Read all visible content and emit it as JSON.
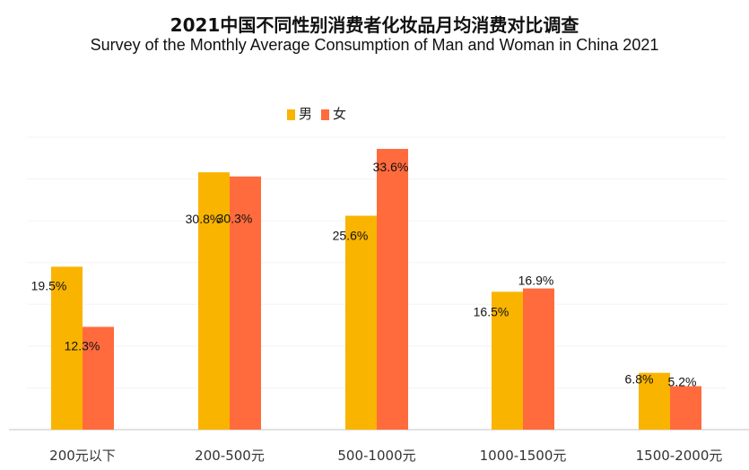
{
  "chart_data": {
    "type": "bar",
    "title": "2021中国不同性别消费者化妆品月均消费对比调查",
    "subtitle": "Survey of the Monthly Average Consumption of Man and Woman in China 2021",
    "categories": [
      "200元以下",
      "200-500元",
      "500-1000元",
      "1000-1500元",
      "1500-2000元"
    ],
    "series": [
      {
        "name": "男",
        "color": "#F9B400",
        "values": [
          19.5,
          30.8,
          25.6,
          16.5,
          6.8
        ],
        "labels": [
          "19.5%",
          "30.8%",
          "25.6%",
          "16.5%",
          "6.8%"
        ]
      },
      {
        "name": "女",
        "color": "#FF6B3D",
        "values": [
          12.3,
          30.3,
          33.6,
          16.9,
          5.2
        ],
        "labels": [
          "12.3%",
          "30.3%",
          "33.6%",
          "16.9%",
          "5.2%"
        ]
      }
    ],
    "ylim": [
      0,
      35
    ],
    "grid": true,
    "legend": "top-center",
    "xlabel": "",
    "ylabel": ""
  }
}
